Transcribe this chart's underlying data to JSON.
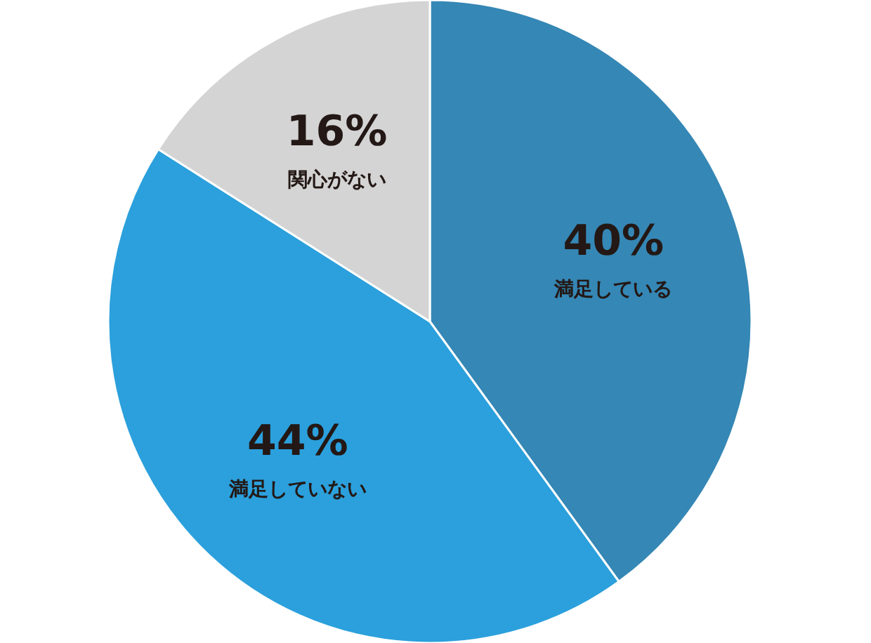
{
  "chart_data": {
    "type": "pie",
    "categories": [
      "満足している",
      "満足していない",
      "関心がない"
    ],
    "values": [
      40,
      44,
      16
    ],
    "colors": [
      "#3587b5",
      "#2ba0dc",
      "#d4d4d4"
    ],
    "value_labels": [
      "40%",
      "44%",
      "16%"
    ]
  }
}
